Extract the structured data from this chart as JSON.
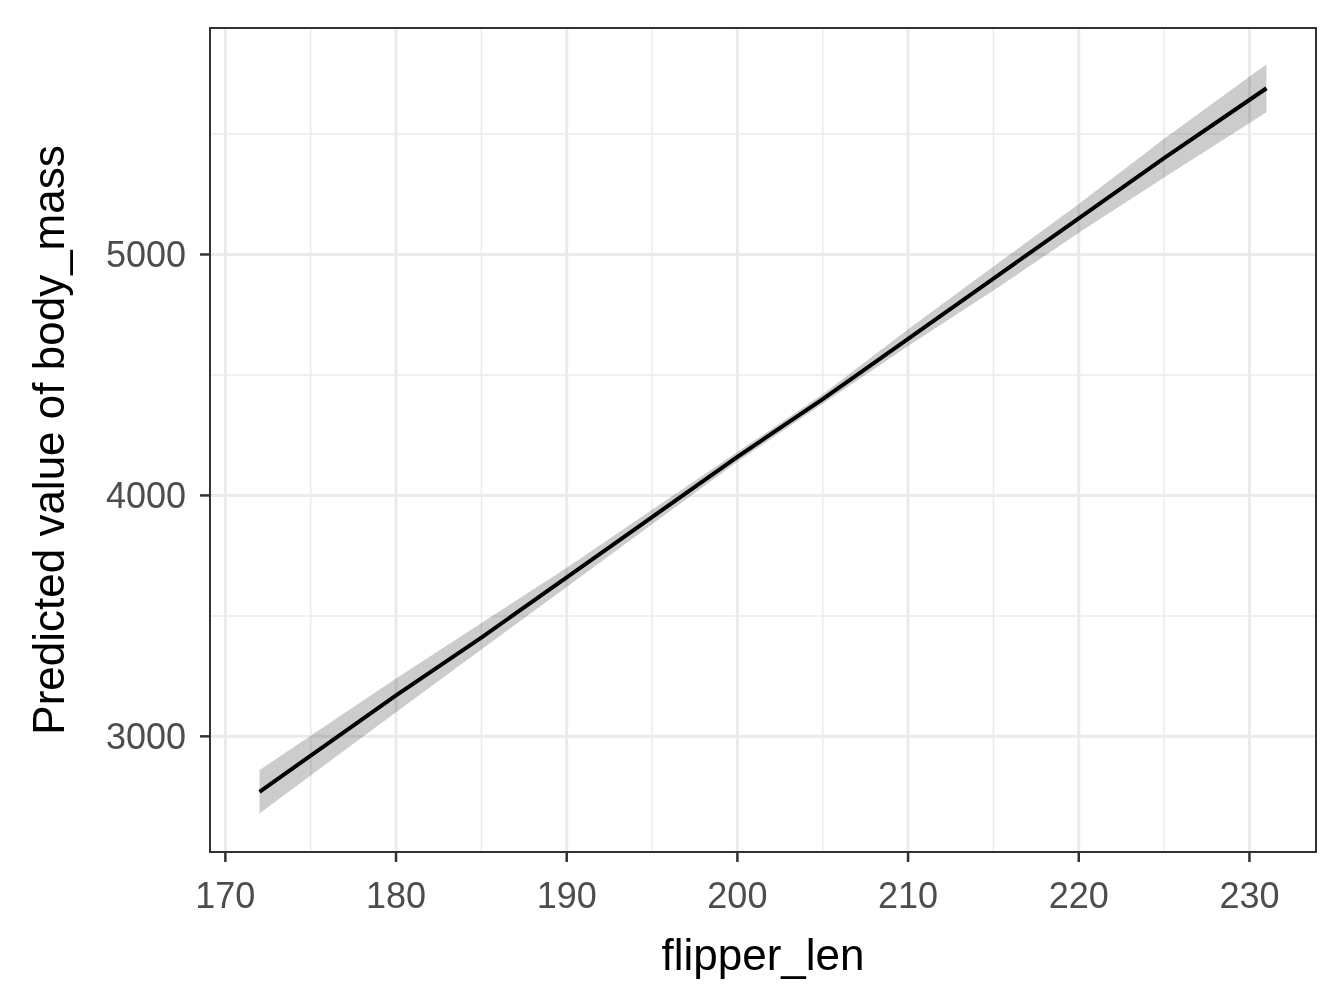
{
  "chart_data": {
    "type": "line",
    "xlabel": "flipper_len",
    "ylabel": "Predicted value of body_mass",
    "xlim": [
      169.1,
      233.9
    ],
    "ylim": [
      2520,
      5940
    ],
    "xticks": [
      170,
      180,
      190,
      200,
      210,
      220,
      230
    ],
    "yticks": [
      3000,
      4000,
      5000
    ],
    "grid": true,
    "x": [
      172,
      176,
      180,
      185,
      190,
      195,
      200,
      205,
      210,
      215,
      220,
      225,
      231
    ],
    "series": [
      {
        "color": "#000000",
        "values": [
          2770,
          2970,
          3170,
          3410,
          3660,
          3910,
          4160,
          4400,
          4650,
          4900,
          5150,
          5400,
          5690
        ],
        "lower": [
          2680,
          2890,
          3100,
          3360,
          3620,
          3880,
          4140,
          4380,
          4620,
          4850,
          5090,
          5320,
          5590
        ],
        "upper": [
          2860,
          3050,
          3240,
          3470,
          3700,
          3940,
          4180,
          4420,
          4690,
          4950,
          5210,
          5480,
          5790
        ]
      }
    ]
  }
}
